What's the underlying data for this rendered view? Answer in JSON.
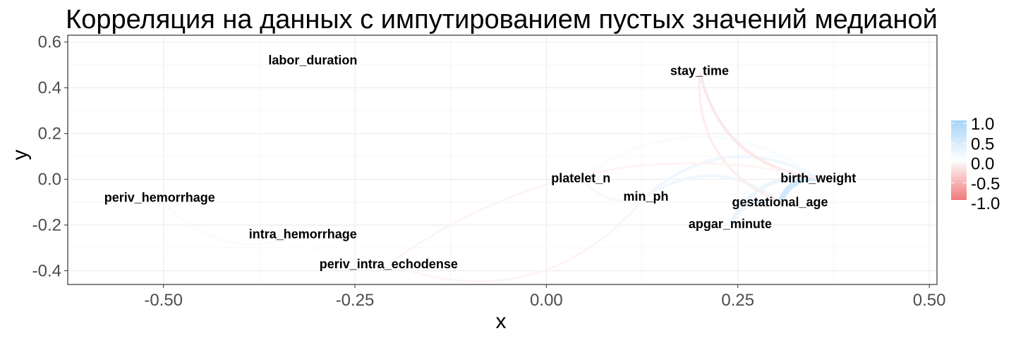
{
  "chart_data": {
    "type": "network",
    "title": "Корреляция на данных с импутированием пустых значений медианой",
    "xlabel": "x",
    "ylabel": "y",
    "xlim": [
      -0.625,
      0.51
    ],
    "ylim": [
      -0.46,
      0.63
    ],
    "x_ticks": [
      -0.5,
      -0.25,
      0.0,
      0.25,
      0.5
    ],
    "x_tick_labels": [
      "-0.50",
      "-0.25",
      "0.00",
      "0.25",
      "0.50"
    ],
    "y_ticks": [
      -0.4,
      -0.2,
      0.0,
      0.2,
      0.4,
      0.6
    ],
    "y_tick_labels": [
      "-0.4",
      "-0.2",
      "0.0",
      "0.2",
      "0.4",
      "0.6"
    ],
    "grid": true,
    "nodes": [
      {
        "name": "labor_duration",
        "x": -0.305,
        "y": 0.52
      },
      {
        "name": "stay_time",
        "x": 0.2,
        "y": 0.475
      },
      {
        "name": "birth_weight",
        "x": 0.355,
        "y": 0.005
      },
      {
        "name": "platelet_n",
        "x": 0.045,
        "y": 0.005
      },
      {
        "name": "min_ph",
        "x": 0.13,
        "y": -0.075
      },
      {
        "name": "gestational_age",
        "x": 0.305,
        "y": -0.1
      },
      {
        "name": "apgar_minute",
        "x": 0.24,
        "y": -0.195
      },
      {
        "name": "periv_hemorrhage",
        "x": -0.505,
        "y": -0.08
      },
      {
        "name": "intra_hemorrhage",
        "x": -0.318,
        "y": -0.24
      },
      {
        "name": "periv_intra_echodense",
        "x": -0.206,
        "y": -0.37
      }
    ],
    "edges": [
      {
        "from": "periv_hemorrhage",
        "to": "intra_hemorrhage",
        "r": 0.1
      },
      {
        "from": "intra_hemorrhage",
        "to": "periv_intra_echodense",
        "r": 0.05
      },
      {
        "from": "periv_intra_echodense",
        "to": "min_ph",
        "r": -0.1
      },
      {
        "from": "birth_weight",
        "to": "gestational_age",
        "r": 0.6
      },
      {
        "from": "birth_weight",
        "to": "apgar_minute",
        "r": 0.3
      },
      {
        "from": "birth_weight",
        "to": "min_ph",
        "r": 0.2
      },
      {
        "from": "birth_weight",
        "to": "platelet_n",
        "r": 0.1
      },
      {
        "from": "gestational_age",
        "to": "apgar_minute",
        "r": 0.25
      },
      {
        "from": "gestational_age",
        "to": "min_ph",
        "r": 0.2
      },
      {
        "from": "platelet_n",
        "to": "min_ph",
        "r": 0.15
      },
      {
        "from": "stay_time",
        "to": "birth_weight",
        "r": -0.2
      },
      {
        "from": "stay_time",
        "to": "gestational_age",
        "r": -0.15
      },
      {
        "from": "birth_weight",
        "to": "periv_intra_echodense",
        "r": -0.1
      }
    ],
    "legend": {
      "position": "right",
      "ticks": [
        1.0,
        0.5,
        0.0,
        -0.5,
        -1.0
      ],
      "tick_labels": [
        "1.0",
        "0.5",
        "0.0",
        "-0.5",
        "-1.0"
      ],
      "colors": {
        "high": "#a6d4fa",
        "mid": "#ffffff",
        "low": "#f07a7a"
      }
    }
  }
}
